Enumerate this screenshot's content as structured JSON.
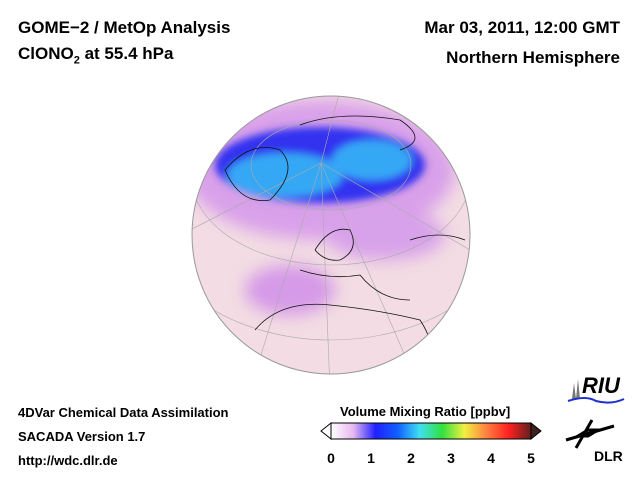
{
  "header": {
    "title_line1": "GOME−2 / MetOp Analysis",
    "species": "ClONO",
    "species_subscript": "2",
    "level": "at 55.4 hPa",
    "date": "Mar 03, 2011, 12:00 GMT",
    "region": "Northern Hemisphere"
  },
  "footer": {
    "line1": "4DVar Chemical Data Assimilation",
    "line2": "SACADA Version 1.7",
    "line3": "http://wdc.dlr.de"
  },
  "colorbar": {
    "label": "Volume Mixing Ratio [ppbv]",
    "ticks": [
      "0",
      "1",
      "2",
      "3",
      "4",
      "5"
    ],
    "range": [
      0,
      5
    ],
    "colors": [
      "#ffffff",
      "#e8b8f0",
      "#2020ff",
      "#1060ff",
      "#40e0f0",
      "#30e040",
      "#f0f040",
      "#ff8040",
      "#ff2020",
      "#602020"
    ]
  },
  "logos": {
    "riu": "RIU",
    "dlr": "DLR"
  }
}
